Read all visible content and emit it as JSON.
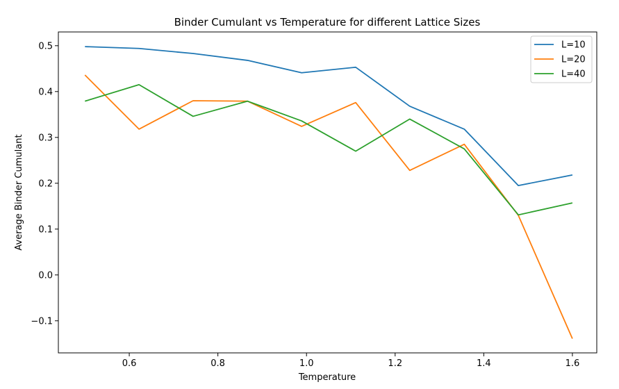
{
  "chart_data": {
    "type": "line",
    "title": "Binder Cumulant vs Temperature for different Lattice Sizes",
    "xlabel": "Temperature",
    "ylabel": "Average Binder Cumulant",
    "xlim": [
      0.44,
      1.655
    ],
    "ylim": [
      -0.17,
      0.53
    ],
    "xticks": [
      0.6,
      0.8,
      1.0,
      1.2,
      1.4,
      1.6
    ],
    "xtick_labels": [
      "0.6",
      "0.8",
      "1.0",
      "1.2",
      "1.4",
      "1.6"
    ],
    "yticks": [
      -0.1,
      0.0,
      0.1,
      0.2,
      0.3,
      0.4,
      0.5
    ],
    "ytick_labels": [
      "−0.1",
      "0.0",
      "0.1",
      "0.2",
      "0.3",
      "0.4",
      "0.5"
    ],
    "grid": false,
    "legend_position": "top-right",
    "x": [
      0.5,
      0.622,
      0.744,
      0.867,
      0.989,
      1.111,
      1.233,
      1.356,
      1.478,
      1.6
    ],
    "series": [
      {
        "name": "L=10",
        "color": "#1f77b4",
        "values": [
          0.498,
          0.494,
          0.483,
          0.468,
          0.441,
          0.453,
          0.368,
          0.318,
          0.195,
          0.218
        ]
      },
      {
        "name": "L=20",
        "color": "#ff7f0e",
        "values": [
          0.436,
          0.318,
          0.38,
          0.379,
          0.324,
          0.376,
          0.228,
          0.285,
          0.13,
          -0.139
        ]
      },
      {
        "name": "L=40",
        "color": "#2ca02c",
        "values": [
          0.379,
          0.415,
          0.346,
          0.379,
          0.336,
          0.27,
          0.34,
          0.275,
          0.131,
          0.157
        ]
      }
    ]
  }
}
